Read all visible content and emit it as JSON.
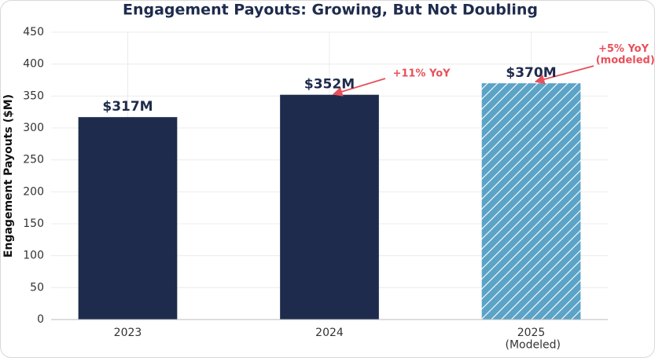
{
  "chart_data": {
    "type": "bar",
    "title": "Engagement Payouts: Growing, But Not Doubling",
    "ylabel": "Engagement Payouts ($M)",
    "categories": [
      "2023",
      "2024",
      "2025\n(Modeled)"
    ],
    "values": [
      317,
      352,
      370
    ],
    "value_labels": [
      "$317M",
      "$352M",
      "$370M"
    ],
    "colors": [
      "#1e2b4d",
      "#1e2b4d",
      "#5ba3c7"
    ],
    "hatch": [
      false,
      false,
      true
    ],
    "ylim": [
      0,
      450
    ],
    "yticks": [
      0,
      50,
      100,
      150,
      200,
      250,
      300,
      350,
      400,
      450
    ],
    "grid": true,
    "annotations": [
      "+11% YoY",
      "+5% YoY\n(modeled)"
    ]
  }
}
